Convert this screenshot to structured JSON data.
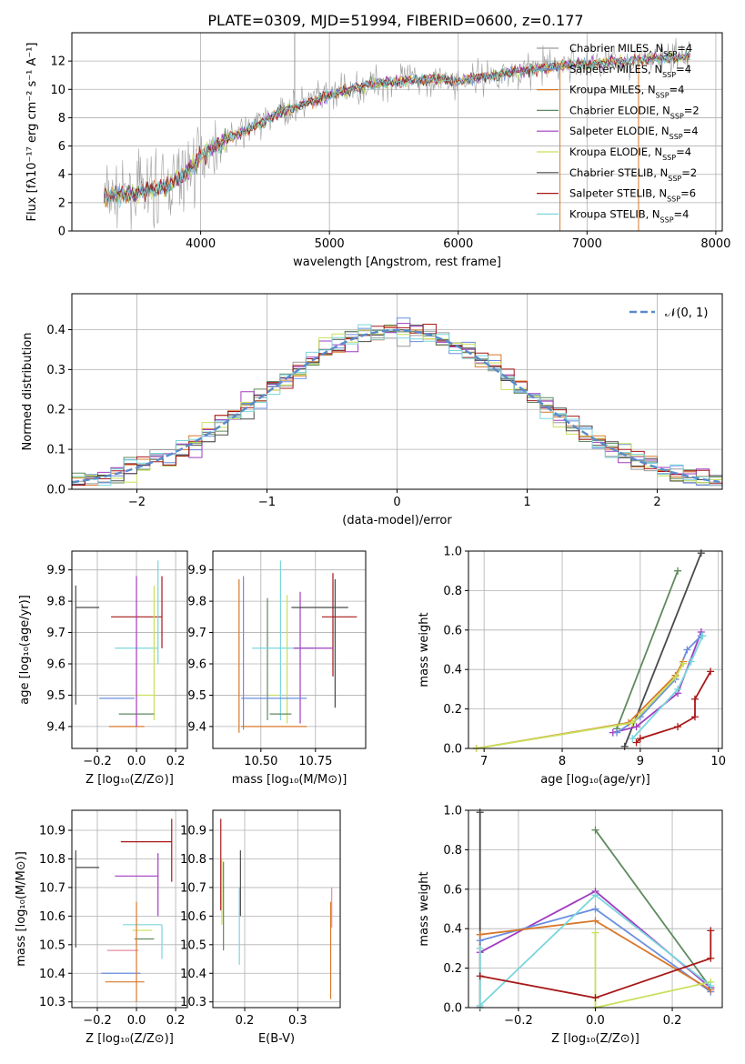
{
  "title": "PLATE=0309, MJD=51994, FIBERID=0600, z=0.177",
  "colors": {
    "chabrier_miles": "#9a9a9a",
    "salpeter_miles": "#6a8fe0",
    "kroupa_miles": "#d9782a",
    "chabrier_elodie": "#5f8a5f",
    "salpeter_elodie": "#a03cc0",
    "kroupa_elodie": "#c8e05a",
    "chabrier_stelib": "#4a4a4a",
    "salpeter_stelib": "#a81818",
    "kroupa_stelib": "#7ad6dc",
    "normal": "#5a8acb"
  },
  "chart_data": [
    {
      "id": "spectrum",
      "type": "line",
      "title": "PLATE=0309, MJD=51994, FIBERID=0600, z=0.177",
      "xlabel": "wavelength [Angstrom, rest frame]",
      "ylabel": "Flux [fλ10⁻¹⁷ erg cm⁻² s⁻¹ A⁻¹]",
      "xlim": [
        3000,
        8050
      ],
      "ylim": [
        0,
        14
      ],
      "xticks": [
        4000,
        5000,
        6000,
        7000,
        8000
      ],
      "yticks": [
        0,
        2,
        4,
        6,
        8,
        10,
        12
      ],
      "legend_position": "top-right",
      "legend": [
        {
          "name": "Chabrier MILES, N",
          "sub": "SSP",
          "tail": "=4",
          "color": "#9a9a9a"
        },
        {
          "name": "Salpeter MILES, N",
          "sub": "SSP",
          "tail": "=4",
          "color": "#6a8fe0"
        },
        {
          "name": "Kroupa MILES, N",
          "sub": "SSP",
          "tail": "=4",
          "color": "#d9782a"
        },
        {
          "name": "Chabrier ELODIE, N",
          "sub": "SSP",
          "tail": "=2",
          "color": "#5f8a5f"
        },
        {
          "name": "Salpeter ELODIE, N",
          "sub": "SSP",
          "tail": "=4",
          "color": "#a03cc0"
        },
        {
          "name": "Kroupa ELODIE, N",
          "sub": "SSP",
          "tail": "=4",
          "color": "#c8e05a"
        },
        {
          "name": "Chabrier STELIB, N",
          "sub": "SSP",
          "tail": "=2",
          "color": "#4a4a4a"
        },
        {
          "name": "Salpeter STELIB, N",
          "sub": "SSP",
          "tail": "=6",
          "color": "#a81818"
        },
        {
          "name": "Kroupa STELIB, N",
          "sub": "SSP",
          "tail": "=4",
          "color": "#7ad6dc"
        }
      ],
      "continuum": [
        [
          3250,
          2.5
        ],
        [
          3500,
          2.6
        ],
        [
          3700,
          3.0
        ],
        [
          3800,
          3.5
        ],
        [
          3900,
          4.2
        ],
        [
          4000,
          5.3
        ],
        [
          4200,
          6.5
        ],
        [
          4400,
          7.3
        ],
        [
          4600,
          8.3
        ],
        [
          4800,
          9.0
        ],
        [
          5000,
          9.6
        ],
        [
          5200,
          10.1
        ],
        [
          5400,
          10.5
        ],
        [
          5600,
          10.6
        ],
        [
          5800,
          10.7
        ],
        [
          6000,
          10.6
        ],
        [
          6200,
          10.9
        ],
        [
          6500,
          11.3
        ],
        [
          6800,
          11.7
        ],
        [
          7000,
          11.8
        ],
        [
          7300,
          12.0
        ],
        [
          7600,
          12.2
        ],
        [
          7800,
          12.3
        ]
      ],
      "spikes": [
        {
          "x": 4730,
          "y": 14,
          "color": "#9a9a9a"
        },
        {
          "x": 6790,
          "y": 0,
          "color": "#d9782a"
        },
        {
          "x": 7400,
          "y": 0,
          "color": "#d9782a"
        }
      ]
    },
    {
      "id": "residual_hist",
      "type": "bar",
      "xlabel": "(data-model)/error",
      "ylabel": "Normed distribution",
      "xlim": [
        -2.5,
        2.5
      ],
      "ylim": [
        0,
        0.49
      ],
      "xticks": [
        -2,
        -1,
        0,
        1,
        2
      ],
      "yticks": [
        0.0,
        0.1,
        0.2,
        0.3,
        0.4
      ],
      "legend": [
        {
          "name": "𝒩(0, 1)",
          "color": "#5a8acb"
        }
      ],
      "legend_position": "top-right",
      "bin_width": 0.1
    },
    {
      "id": "age_vs_Z",
      "type": "scatter",
      "xlabel": "Z [log₁₀(Z/Z⊙)]",
      "ylabel": "age  [log₁₀(age/yr)]",
      "xlim": [
        -0.33,
        0.26
      ],
      "ylim": [
        9.33,
        9.96
      ],
      "xticks": [
        -0.2,
        0.0,
        0.2
      ],
      "yticks": [
        9.4,
        9.5,
        9.6,
        9.7,
        9.8,
        9.9
      ],
      "points": [
        {
          "x": -0.25,
          "y": 9.78,
          "xerr": 0.06,
          "yerr": [
            0.31,
            0.07
          ],
          "color": "#4a4a4a"
        },
        {
          "x": 0.0,
          "y": 9.75,
          "xerr": 0.13,
          "yerr": [
            0.1,
            0.13
          ],
          "color": "#a81818"
        },
        {
          "x": 0.0,
          "y": 9.65,
          "xerr": 0.11,
          "yerr": [
            0.05,
            0.28
          ],
          "color": "#7ad6dc"
        },
        {
          "x": 0.04,
          "y": 9.5,
          "xerr": 0.05,
          "yerr": [
            0.08,
            0.35
          ],
          "color": "#c8e05a"
        },
        {
          "x": -0.1,
          "y": 9.49,
          "xerr": 0.09,
          "yerr": [
            0.0,
            0.0
          ],
          "color": "#6a8fe0"
        },
        {
          "x": -0.05,
          "y": 9.4,
          "xerr": 0.09,
          "yerr": [
            0.0,
            0.0
          ],
          "color": "#d9782a"
        },
        {
          "x": 0.0,
          "y": 9.44,
          "xerr": 0.09,
          "yerr": [
            0.0,
            0.0
          ],
          "color": "#5f8a5f"
        },
        {
          "x": 0.0,
          "y": 9.65,
          "xerr": 0.0,
          "yerr": [
            0.25,
            0.23
          ],
          "color": "#a03cc0"
        }
      ]
    },
    {
      "id": "age_vs_mass",
      "type": "scatter",
      "xlabel": "mass [log₁₀(M/M⊙)]",
      "xlim": [
        10.28,
        10.98
      ],
      "ylim": [
        9.33,
        9.96
      ],
      "xticks": [
        10.5,
        10.75
      ],
      "xticklabels": [
        "10.50",
        "10.75"
      ],
      "yticks": [
        9.4,
        9.5,
        9.6,
        9.7,
        9.8,
        9.9
      ],
      "points": [
        {
          "x": 10.77,
          "y": 9.78,
          "xerr": 0.13,
          "yerr": [
            0.0,
            0.0
          ],
          "color": "#4a4a4a"
        },
        {
          "x": 10.86,
          "y": 9.75,
          "xerr": 0.08,
          "yerr": [
            0.0,
            0.0
          ],
          "color": "#a81818"
        },
        {
          "x": 10.6,
          "y": 9.65,
          "xerr": 0.14,
          "yerr": [
            0.0,
            0.0
          ],
          "color": "#7ad6dc"
        },
        {
          "x": 10.74,
          "y": 9.65,
          "xerr": 0.09,
          "yerr": [
            0.0,
            0.0
          ],
          "color": "#a03cc0"
        },
        {
          "x": 10.56,
          "y": 9.5,
          "xerr": 0.02,
          "yerr": [
            0.0,
            0.0
          ],
          "color": "#c8e05a"
        },
        {
          "x": 10.56,
          "y": 9.49,
          "xerr": 0.15,
          "yerr": [
            0.0,
            0.0
          ],
          "color": "#6a8fe0"
        },
        {
          "x": 10.56,
          "y": 9.4,
          "xerr": 0.15,
          "yerr": [
            0.0,
            0.0
          ],
          "color": "#d9782a"
        },
        {
          "x": 10.59,
          "y": 9.44,
          "xerr": 0.05,
          "yerr": [
            0.0,
            0.0
          ],
          "color": "#5f8a5f"
        }
      ],
      "vlines": [
        {
          "x": 10.4,
          "y0": 9.38,
          "y1": 9.87,
          "color": "#d9782a"
        },
        {
          "x": 10.42,
          "y0": 9.39,
          "y1": 9.88,
          "color": "#6a8fe0"
        },
        {
          "x": 10.53,
          "y0": 9.42,
          "y1": 9.81,
          "color": "#5f8a5f"
        },
        {
          "x": 10.59,
          "y0": 9.42,
          "y1": 9.93,
          "color": "#7ad6dc"
        },
        {
          "x": 10.68,
          "y0": 9.41,
          "y1": 9.83,
          "color": "#a03cc0"
        },
        {
          "x": 10.62,
          "y0": 9.41,
          "y1": 9.82,
          "color": "#c8e05a"
        },
        {
          "x": 10.84,
          "y0": 9.46,
          "y1": 9.87,
          "color": "#4a4a4a"
        },
        {
          "x": 10.83,
          "y0": 9.56,
          "y1": 9.89,
          "color": "#a81818"
        }
      ]
    },
    {
      "id": "mass_weight_vs_age",
      "type": "line",
      "xlabel": "age  [log₁₀(age/yr)]",
      "ylabel": "mass weight",
      "xlim": [
        6.8,
        10.05
      ],
      "ylim": [
        0,
        1.0
      ],
      "xticks": [
        7,
        8,
        9,
        10
      ],
      "yticks": [
        0.0,
        0.2,
        0.4,
        0.6,
        0.8,
        1.0
      ],
      "series": [
        {
          "color": "#4a4a4a",
          "x": [
            8.8,
            9.78
          ],
          "y": [
            0.01,
            0.99
          ]
        },
        {
          "color": "#5f8a5f",
          "x": [
            8.7,
            9.48
          ],
          "y": [
            0.1,
            0.9
          ]
        },
        {
          "color": "#a03cc0",
          "x": [
            8.65,
            8.95,
            9.48,
            9.78
          ],
          "y": [
            0.08,
            0.11,
            0.28,
            0.59
          ]
        },
        {
          "color": "#6a8fe0",
          "x": [
            8.7,
            9.0,
            9.45,
            9.6,
            9.78
          ],
          "y": [
            0.08,
            0.16,
            0.35,
            0.5,
            0.57
          ]
        },
        {
          "color": "#d9782a",
          "x": [
            6.9,
            8.85,
            9.45,
            9.55
          ],
          "y": [
            0.0,
            0.13,
            0.37,
            0.44
          ]
        },
        {
          "color": "#c8e05a",
          "x": [
            6.9,
            8.9,
            9.45,
            9.55
          ],
          "y": [
            0.0,
            0.13,
            0.36,
            0.43
          ]
        },
        {
          "color": "#7ad6dc",
          "x": [
            8.9,
            9.48,
            9.65,
            9.8
          ],
          "y": [
            0.05,
            0.3,
            0.44,
            0.57
          ]
        },
        {
          "color": "#a81818",
          "x": [
            8.95,
            9.0,
            9.48,
            9.7,
            9.7,
            9.9
          ],
          "y": [
            0.03,
            0.05,
            0.11,
            0.16,
            0.25,
            0.39
          ]
        }
      ]
    },
    {
      "id": "mass_vs_Z",
      "type": "scatter",
      "xlabel": "Z [log₁₀(Z/Z⊙)]",
      "ylabel": "mass [log₁₀(M/M⊙)]",
      "xlim": [
        -0.33,
        0.26
      ],
      "ylim": [
        10.28,
        10.97
      ],
      "xticks": [
        -0.2,
        0.0,
        0.2
      ],
      "yticks": [
        10.3,
        10.4,
        10.5,
        10.6,
        10.7,
        10.8,
        10.9
      ],
      "points": [
        {
          "x": -0.25,
          "y": 10.77,
          "xerr": 0.06,
          "yerr": [
            0.28,
            0.06
          ],
          "color": "#4a4a4a"
        },
        {
          "x": 0.05,
          "y": 10.86,
          "xerr": 0.13,
          "yerr": [
            0.0,
            0.0
          ],
          "color": "#a81818"
        },
        {
          "x": 0.18,
          "y": 10.86,
          "xerr": 0.0,
          "yerr": [
            0.14,
            0.08
          ],
          "color": "#a81818"
        },
        {
          "x": 0.0,
          "y": 10.74,
          "xerr": 0.11,
          "yerr": [
            0.14,
            0.08
          ],
          "color": "#a03cc0"
        },
        {
          "x": 0.03,
          "y": 10.57,
          "xerr": 0.1,
          "yerr": [
            0.12,
            0.0
          ],
          "color": "#7ad6dc"
        },
        {
          "x": 0.03,
          "y": 10.55,
          "xerr": 0.05,
          "yerr": [
            0.0,
            0.0
          ],
          "color": "#c8e05a"
        },
        {
          "x": 0.04,
          "y": 10.52,
          "xerr": 0.05,
          "yerr": [
            0.0,
            0.0
          ],
          "color": "#5f8a5f"
        },
        {
          "x": -0.07,
          "y": 10.48,
          "xerr": 0.08,
          "yerr": [
            0.0,
            0.0
          ],
          "color": "#e68ca0"
        },
        {
          "x": -0.08,
          "y": 10.4,
          "xerr": 0.1,
          "yerr": [
            0.0,
            0.0
          ],
          "color": "#6a8fe0"
        },
        {
          "x": -0.06,
          "y": 10.37,
          "xerr": 0.1,
          "yerr": [
            0.0,
            0.0
          ],
          "color": "#d9782a"
        },
        {
          "x": 0.0,
          "y": 10.5,
          "xerr": 0.0,
          "yerr": [
            0.2,
            0.15
          ],
          "color": "#d9782a"
        }
      ]
    },
    {
      "id": "mass_vs_ebv",
      "type": "scatter",
      "xlabel": "E(B-V)",
      "xlim": [
        0.14,
        0.38
      ],
      "ylim": [
        10.28,
        10.97
      ],
      "xticks": [
        0.2,
        0.3
      ],
      "yticks": [
        10.3,
        10.4,
        10.5,
        10.6,
        10.7,
        10.8,
        10.9
      ],
      "vlines": [
        {
          "x": 0.155,
          "y0": 10.62,
          "y1": 10.94,
          "color": "#a81818"
        },
        {
          "x": 0.16,
          "y0": 10.48,
          "y1": 10.79,
          "color": "#5f8a5f"
        },
        {
          "x": 0.157,
          "y0": 10.57,
          "y1": 10.8,
          "color": "#c8e05a"
        },
        {
          "x": 0.19,
          "y0": 10.43,
          "y1": 10.7,
          "color": "#7ad6dc"
        },
        {
          "x": 0.192,
          "y0": 10.6,
          "y1": 10.83,
          "color": "#4a4a4a"
        },
        {
          "x": 0.362,
          "y0": 10.31,
          "y1": 10.65,
          "color": "#d9782a"
        },
        {
          "x": 0.364,
          "y0": 10.56,
          "y1": 10.7,
          "color": "#e68ca0"
        }
      ]
    },
    {
      "id": "mass_weight_vs_Z",
      "type": "line",
      "xlabel": "Z [log₁₀(Z/Z⊙)]",
      "ylabel": "mass weight",
      "xlim": [
        -0.33,
        0.33
      ],
      "ylim": [
        0,
        1.0
      ],
      "xticks": [
        -0.2,
        0.0,
        0.2
      ],
      "yticks": [
        0.0,
        0.2,
        0.4,
        0.6,
        0.8,
        1.0
      ],
      "series": [
        {
          "color": "#4a4a4a",
          "x": [
            -0.3,
            -0.3
          ],
          "y": [
            0.0,
            0.99
          ]
        },
        {
          "color": "#5f8a5f",
          "x": [
            0.0,
            0.3
          ],
          "y": [
            0.9,
            0.1
          ]
        },
        {
          "color": "#a03cc0",
          "x": [
            -0.3,
            0.0,
            0.3
          ],
          "y": [
            0.28,
            0.59,
            0.1
          ]
        },
        {
          "color": "#6a8fe0",
          "x": [
            -0.3,
            0.0,
            0.3
          ],
          "y": [
            0.34,
            0.5,
            0.08
          ]
        },
        {
          "color": "#d9782a",
          "x": [
            -0.3,
            0.0,
            0.3
          ],
          "y": [
            0.37,
            0.44,
            0.09
          ]
        },
        {
          "color": "#c8e05a",
          "x": [
            0.0,
            0.0,
            0.3
          ],
          "y": [
            0.38,
            0.0,
            0.13
          ]
        },
        {
          "color": "#7ad6dc",
          "x": [
            -0.3,
            -0.3,
            0.0,
            0.3
          ],
          "y": [
            0.3,
            0.01,
            0.57,
            0.11
          ]
        },
        {
          "color": "#a81818",
          "x": [
            -0.3,
            0.0,
            0.3,
            0.3
          ],
          "y": [
            0.16,
            0.05,
            0.25,
            0.39
          ]
        }
      ]
    }
  ]
}
